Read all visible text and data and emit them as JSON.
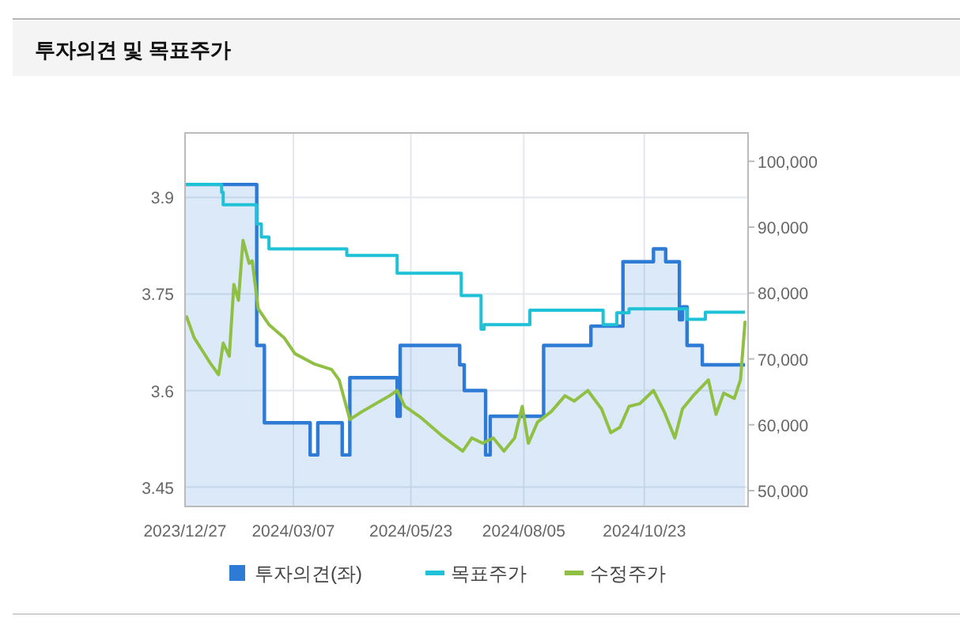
{
  "chart_data": {
    "type": "line",
    "title": "투자의견 및 목표주가",
    "xlim": [
      "2023-12-27",
      "2024-12-30"
    ],
    "xticks": [
      {
        "value": "2023-12-27",
        "label": "2023/12/27"
      },
      {
        "value": "2024-03-07",
        "label": "2024/03/07"
      },
      {
        "value": "2024-05-23",
        "label": "2024/05/23"
      },
      {
        "value": "2024-08-05",
        "label": "2024/08/05"
      },
      {
        "value": "2024-10-23",
        "label": "2024/10/23"
      }
    ],
    "ylim": [
      3.42,
      4.0
    ],
    "yticks": [
      3.45,
      3.6,
      3.75,
      3.9
    ],
    "y2lim": [
      47600,
      104300
    ],
    "y2ticks": [
      {
        "value": 50000,
        "label": "50,000"
      },
      {
        "value": 60000,
        "label": "60,000"
      },
      {
        "value": 70000,
        "label": "70,000"
      },
      {
        "value": 80000,
        "label": "80,000"
      },
      {
        "value": 90000,
        "label": "90,000"
      },
      {
        "value": 100000,
        "label": "100,000"
      }
    ],
    "grid": true,
    "legend": "bottom",
    "series": [
      {
        "name": "투자의견(좌)",
        "type": "area",
        "color": "#2e7bd6",
        "x": [
          "2023-12-27",
          "2024-02-12",
          "2024-02-12",
          "2024-02-17",
          "2024-02-17",
          "2024-03-18",
          "2024-03-18",
          "2024-03-23",
          "2024-03-23",
          "2024-04-08",
          "2024-04-08",
          "2024-04-13",
          "2024-04-13",
          "2024-05-14",
          "2024-05-14",
          "2024-05-16",
          "2024-05-16",
          "2024-06-24",
          "2024-06-24",
          "2024-06-27",
          "2024-06-27",
          "2024-07-11",
          "2024-07-11",
          "2024-07-14",
          "2024-07-14",
          "2024-08-18",
          "2024-08-18",
          "2024-09-18",
          "2024-09-18",
          "2024-10-09",
          "2024-10-09",
          "2024-10-29",
          "2024-10-29",
          "2024-11-06",
          "2024-11-06",
          "2024-11-15",
          "2024-11-15",
          "2024-11-17",
          "2024-11-17",
          "2024-11-20",
          "2024-11-20",
          "2024-11-30",
          "2024-11-30",
          "2024-12-28"
        ],
        "values": [
          3.92,
          3.92,
          3.67,
          3.67,
          3.55,
          3.55,
          3.5,
          3.5,
          3.55,
          3.55,
          3.5,
          3.5,
          3.62,
          3.62,
          3.56,
          3.56,
          3.67,
          3.67,
          3.64,
          3.64,
          3.6,
          3.6,
          3.5,
          3.5,
          3.56,
          3.56,
          3.67,
          3.67,
          3.7,
          3.7,
          3.8,
          3.8,
          3.82,
          3.82,
          3.8,
          3.8,
          3.71,
          3.71,
          3.73,
          3.73,
          3.67,
          3.67,
          3.64,
          3.64
        ]
      },
      {
        "name": "목표주가",
        "type": "step",
        "axis": "y2",
        "color": "#1ec1d6",
        "x": [
          "2023-12-27",
          "2024-01-20",
          "2024-01-21",
          "2024-02-12",
          "2024-02-15",
          "2024-02-20",
          "2024-04-11",
          "2024-05-14",
          "2024-06-25",
          "2024-07-08",
          "2024-07-10",
          "2024-08-09",
          "2024-09-26",
          "2024-10-05",
          "2024-10-13",
          "2024-11-20",
          "2024-12-02",
          "2024-12-28"
        ],
        "values": [
          96500,
          95300,
          93400,
          90500,
          88500,
          86700,
          85700,
          83000,
          79600,
          74500,
          75200,
          77400,
          75200,
          77000,
          77600,
          76000,
          77100,
          77100
        ]
      },
      {
        "name": "수정주가",
        "axis": "y2",
        "color": "#8fc043",
        "x": [
          "2023-12-28",
          "2024-01-02",
          "2024-01-13",
          "2024-01-18",
          "2024-01-21",
          "2024-01-25",
          "2024-01-28",
          "2024-01-31",
          "2024-02-03",
          "2024-02-07",
          "2024-02-09",
          "2024-02-13",
          "2024-02-20",
          "2024-03-01",
          "2024-03-08",
          "2024-03-21",
          "2024-04-01",
          "2024-04-06",
          "2024-04-13",
          "2024-04-21",
          "2024-05-09",
          "2024-05-14",
          "2024-05-19",
          "2024-05-29",
          "2024-06-12",
          "2024-06-26",
          "2024-07-02",
          "2024-07-09",
          "2024-07-16",
          "2024-07-23",
          "2024-07-30",
          "2024-08-04",
          "2024-08-08",
          "2024-08-14",
          "2024-08-23",
          "2024-09-01",
          "2024-09-07",
          "2024-09-16",
          "2024-09-25",
          "2024-10-01",
          "2024-10-07",
          "2024-10-13",
          "2024-10-20",
          "2024-10-29",
          "2024-11-05",
          "2024-11-12",
          "2024-11-17",
          "2024-11-24",
          "2024-12-04",
          "2024-12-09",
          "2024-12-14",
          "2024-12-21",
          "2024-12-25",
          "2024-12-28"
        ],
        "values": [
          76400,
          73200,
          69200,
          67600,
          72400,
          70400,
          81300,
          78900,
          88000,
          84500,
          84900,
          77600,
          75200,
          73200,
          70800,
          69200,
          68400,
          66800,
          60800,
          62000,
          64400,
          65200,
          62800,
          61200,
          58400,
          56000,
          58000,
          57200,
          58000,
          56000,
          58000,
          62800,
          57200,
          60400,
          62000,
          64400,
          63600,
          65200,
          62400,
          58800,
          59600,
          62800,
          63200,
          65200,
          62000,
          58000,
          62400,
          64400,
          66800,
          61600,
          64800,
          64000,
          66800,
          75600
        ]
      }
    ]
  }
}
